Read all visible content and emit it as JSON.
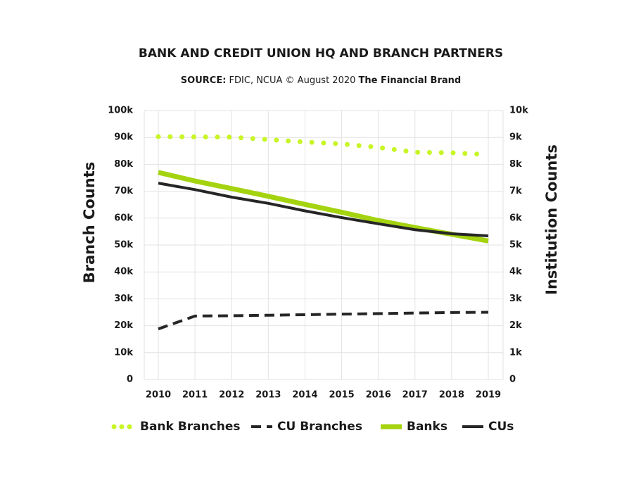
{
  "chart_data": {
    "type": "line",
    "title": "BANK AND CREDIT UNION HQ AND BRANCH PARTNERS",
    "source": {
      "label": "SOURCE:",
      "text": "FDIC, NCUA © August 2020",
      "brand": "The Financial Brand"
    },
    "y_label": "Branch Counts",
    "y2_label": "Institution Counts",
    "categories": [
      "2010",
      "2011",
      "2012",
      "2013",
      "2014",
      "2015",
      "2016",
      "2017",
      "2018",
      "2019"
    ],
    "ylim": [
      0,
      100000
    ],
    "yticks": [
      0,
      {
        "value": 10000,
        "label": "10k"
      },
      {
        "value": 20000,
        "label": "20k"
      },
      {
        "value": 30000,
        "label": "30k"
      },
      {
        "value": 40000,
        "label": "40k"
      },
      {
        "value": 50000,
        "label": "50k"
      },
      {
        "value": 60000,
        "label": "60k"
      },
      {
        "value": 70000,
        "label": "70k"
      },
      {
        "value": 80000,
        "label": "80k"
      },
      {
        "value": 90000,
        "label": "90k"
      },
      {
        "value": 100000,
        "label": "100k"
      }
    ],
    "y2lim": [
      0,
      10000
    ],
    "y2ticks": [
      0,
      {
        "value": 1000,
        "label": "1k"
      },
      {
        "value": 2000,
        "label": "2k"
      },
      {
        "value": 3000,
        "label": "3k"
      },
      {
        "value": 4000,
        "label": "4k"
      },
      {
        "value": 5000,
        "label": "5k"
      },
      {
        "value": 6000,
        "label": "6k"
      },
      {
        "value": 7000,
        "label": "7k"
      },
      {
        "value": 8000,
        "label": "8k"
      },
      {
        "value": 9000,
        "label": "9k"
      },
      {
        "value": 10000,
        "label": "10k"
      }
    ],
    "grid": true,
    "legend": "bottom",
    "series": [
      {
        "name": "Bank Branches",
        "color": "#c8f526",
        "line_style": "dotted",
        "weight": "heavy",
        "axis": "y",
        "values": [
          90300,
          90200,
          90100,
          89200,
          88300,
          87600,
          86300,
          84500,
          84300,
          83600
        ]
      },
      {
        "name": "CU Branches",
        "color": "#262626",
        "line_style": "dashed",
        "weight": "normal",
        "axis": "y",
        "values": [
          18800,
          23600,
          23700,
          23900,
          24100,
          24300,
          24500,
          24700,
          24900,
          25000
        ]
      },
      {
        "name": "Banks",
        "color": "#a4d30f",
        "line_style": "solid",
        "weight": "heavy",
        "axis": "y2",
        "values": [
          7700,
          7380,
          7100,
          6810,
          6510,
          6220,
          5910,
          5650,
          5400,
          5150
        ]
      },
      {
        "name": "CUs",
        "color": "#262626",
        "line_style": "solid",
        "weight": "normal",
        "axis": "y2",
        "values": [
          7300,
          7060,
          6780,
          6550,
          6270,
          6020,
          5790,
          5570,
          5420,
          5340
        ]
      }
    ]
  }
}
